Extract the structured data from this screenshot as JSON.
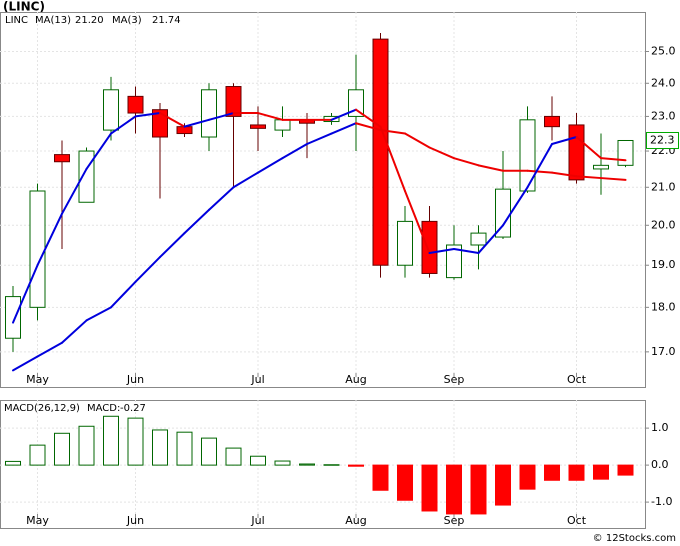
{
  "credit": "© 12Stocks.com",
  "chart_data": [
    {
      "type": "candlestick",
      "title": "(LINC)",
      "symbol": "LINC",
      "categories": [
        null,
        "May",
        null,
        null,
        null,
        "Jun",
        null,
        null,
        null,
        null,
        "Jul",
        null,
        null,
        null,
        "Aug",
        null,
        null,
        null,
        "Sep",
        null,
        null,
        null,
        null,
        "Oct",
        null,
        null
      ],
      "open": [
        17.3,
        18.0,
        21.9,
        20.6,
        22.6,
        23.6,
        23.2,
        22.7,
        22.4,
        23.9,
        22.75,
        22.6,
        22.9,
        22.85,
        23.0,
        25.4,
        19.0,
        20.1,
        18.7,
        19.5,
        19.7,
        20.9,
        23.0,
        22.75,
        21.5,
        21.6
      ],
      "high": [
        18.5,
        21.1,
        22.3,
        22.1,
        24.2,
        23.9,
        23.4,
        22.8,
        24.0,
        24.0,
        23.3,
        23.3,
        23.1,
        23.1,
        24.9,
        25.6,
        20.5,
        20.5,
        20.0,
        20.0,
        22.0,
        23.3,
        23.6,
        23.1,
        22.5,
        22.3
      ],
      "low": [
        17.0,
        17.7,
        19.4,
        20.6,
        22.3,
        22.5,
        20.7,
        22.4,
        22.0,
        21.0,
        22.0,
        22.4,
        21.8,
        22.75,
        22.0,
        18.7,
        18.7,
        18.7,
        18.65,
        18.9,
        19.65,
        20.85,
        22.3,
        21.1,
        20.8,
        21.55
      ],
      "close": [
        18.25,
        20.9,
        21.7,
        22.0,
        23.8,
        23.1,
        22.4,
        22.5,
        23.8,
        23.0,
        22.65,
        22.9,
        22.8,
        23.0,
        23.8,
        19.0,
        20.1,
        18.8,
        19.5,
        19.8,
        20.95,
        22.9,
        22.7,
        21.2,
        21.6,
        22.3
      ],
      "up_color": "#ffffff",
      "up_edge_color": "#006600",
      "down_color": "#ff0000",
      "down_edge_color": "#660000",
      "log_scale": true,
      "grid": true,
      "ylim": [
        16.25,
        26.3
      ],
      "yticks": [
        {
          "value": 17,
          "label": "17.0"
        },
        {
          "value": 18,
          "label": "18.0"
        },
        {
          "value": 19,
          "label": "19.0"
        },
        {
          "value": 20,
          "label": "20.0"
        },
        {
          "value": 21,
          "label": "21.0"
        },
        {
          "value": 22,
          "label": "22.0"
        },
        {
          "value": 23,
          "label": "23.0"
        },
        {
          "value": 24,
          "label": "24.0"
        },
        {
          "value": 25,
          "label": "25.0"
        }
      ],
      "last_price": {
        "value": 22.3,
        "label": "22.3"
      },
      "series": [
        {
          "name": "MA(13)",
          "legend_value": {
            "value": 21.2,
            "label": "21.20"
          },
          "values": [
            16.6,
            16.9,
            17.2,
            17.7,
            18.0,
            18.6,
            19.2,
            19.8,
            20.4,
            21.0,
            21.4,
            21.8,
            22.2,
            22.5,
            22.8,
            22.6,
            22.5,
            22.1,
            21.8,
            21.6,
            21.45,
            21.45,
            21.4,
            21.3,
            21.25,
            21.2
          ],
          "segment_colors": [
            "#0000dd",
            "#0000dd",
            "#0000dd",
            "#0000dd",
            "#0000dd",
            "#0000dd",
            "#0000dd",
            "#0000dd",
            "#0000dd",
            "#0000dd",
            "#0000dd",
            "#0000dd",
            "#0000dd",
            "#0000dd",
            "#ee0000",
            "#ee0000",
            "#ee0000",
            "#ee0000",
            "#ee0000",
            "#ee0000",
            "#ee0000",
            "#ee0000",
            "#ee0000",
            "#ee0000",
            "#ee0000"
          ]
        },
        {
          "name": "MA(3)",
          "legend_value": {
            "value": 21.74,
            "label": "21.74"
          },
          "values": [
            17.65,
            19.0,
            20.3,
            21.5,
            22.5,
            23.0,
            23.1,
            22.7,
            22.9,
            23.1,
            23.1,
            22.9,
            22.9,
            22.9,
            23.2,
            22.7,
            20.9,
            19.3,
            19.4,
            19.3,
            20.0,
            21.0,
            22.2,
            22.4,
            21.8,
            21.74
          ],
          "segment_colors": [
            "#0000dd",
            "#0000dd",
            "#0000dd",
            "#0000dd",
            "#0000dd",
            "#0000dd",
            "#ee0000",
            "#0000dd",
            "#0000dd",
            "#ee0000",
            "#ee0000",
            "#ee0000",
            "#ee0000",
            "#0000dd",
            "#ee0000",
            "#ee0000",
            "#ee0000",
            "#0000dd",
            "#0000dd",
            "#0000dd",
            "#0000dd",
            "#0000dd",
            "#0000dd",
            "#ee0000",
            "#ee0000"
          ]
        }
      ]
    },
    {
      "type": "bar",
      "title": "MACD(26,12,9)",
      "value_name": "MACD:",
      "legend_value": {
        "value": -0.27,
        "label": "-0.27"
      },
      "categories": [
        null,
        "May",
        null,
        null,
        null,
        "Jun",
        null,
        null,
        null,
        null,
        "Jul",
        null,
        null,
        null,
        "Aug",
        null,
        null,
        null,
        "Sep",
        null,
        null,
        null,
        null,
        "Oct",
        null,
        null
      ],
      "values": [
        0.1,
        0.54,
        0.86,
        1.05,
        1.32,
        1.27,
        0.95,
        0.89,
        0.73,
        0.46,
        0.24,
        0.11,
        0.03,
        0.01,
        -0.03,
        -0.68,
        -0.95,
        -1.24,
        -1.32,
        -1.32,
        -1.08,
        -0.65,
        -0.41,
        -0.41,
        -0.38,
        -0.27
      ],
      "up_color": "#ffffff",
      "up_edge_color": "#006600",
      "down_color": "#ff0000",
      "ylim": [
        -1.7,
        1.76
      ],
      "grid": true,
      "yticks": [
        {
          "value": -1,
          "label": "-1.0"
        },
        {
          "value": 0,
          "label": "0.0"
        },
        {
          "value": 1,
          "label": "1.0"
        }
      ]
    }
  ]
}
